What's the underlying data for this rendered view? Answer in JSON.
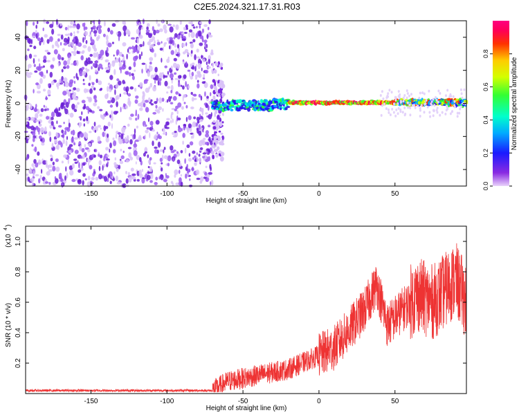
{
  "title": "C2E5.2024.321.17.31.R03",
  "colors": {
    "snr_line": "#ee3333",
    "noise_purple": "#7a2be0",
    "noise_light": "#c9a8f2"
  },
  "chart_data": [
    {
      "type": "heatmap",
      "xlabel": "Height of straight line (km)",
      "ylabel": "Frequency (Hz)",
      "xlim": [
        -193,
        97
      ],
      "ylim": [
        -50,
        50
      ],
      "xticks": [
        -150,
        -100,
        -50,
        0,
        50
      ],
      "yticks": [
        -40,
        -20,
        0,
        20,
        40
      ],
      "colorbar": {
        "label": "Normalized spectral amplitude",
        "range": [
          0,
          1
        ],
        "ticks": [
          "0.0",
          "0.2",
          "0.4",
          "0.6",
          "0.8"
        ],
        "colormap": "rainbow (violet → blue → cyan → green → yellow → red → magenta)"
      },
      "description_values": {
        "noise_region_x": [
          -193,
          -70
        ],
        "signal_center_freq_hz": 0,
        "strong_signal_x": [
          -20,
          50
        ]
      }
    },
    {
      "type": "line",
      "xlabel": "Height of straight line (km)",
      "ylabel": "SNR (10 * v/v)",
      "yscale_label": "(x10",
      "yscale_exp": "4",
      "xlim": [
        -193,
        97
      ],
      "ylim": [
        0,
        1.1
      ],
      "xticks": [
        -150,
        -100,
        -50,
        0,
        50
      ],
      "yticks": [
        "0.2",
        "0.4",
        "0.6",
        "0.8",
        "1.0"
      ],
      "trend": [
        {
          "x": -193,
          "y": 0.02
        },
        {
          "x": -70,
          "y": 0.02
        },
        {
          "x": -60,
          "y": 0.08
        },
        {
          "x": -40,
          "y": 0.12
        },
        {
          "x": -20,
          "y": 0.16
        },
        {
          "x": 0,
          "y": 0.25
        },
        {
          "x": 10,
          "y": 0.3
        },
        {
          "x": 20,
          "y": 0.42
        },
        {
          "x": 30,
          "y": 0.55
        },
        {
          "x": 38,
          "y": 0.72
        },
        {
          "x": 45,
          "y": 0.45
        },
        {
          "x": 55,
          "y": 0.55
        },
        {
          "x": 65,
          "y": 0.65
        },
        {
          "x": 75,
          "y": 0.6
        },
        {
          "x": 85,
          "y": 0.7
        },
        {
          "x": 90,
          "y": 0.75
        },
        {
          "x": 97,
          "y": 0.6
        }
      ]
    }
  ]
}
